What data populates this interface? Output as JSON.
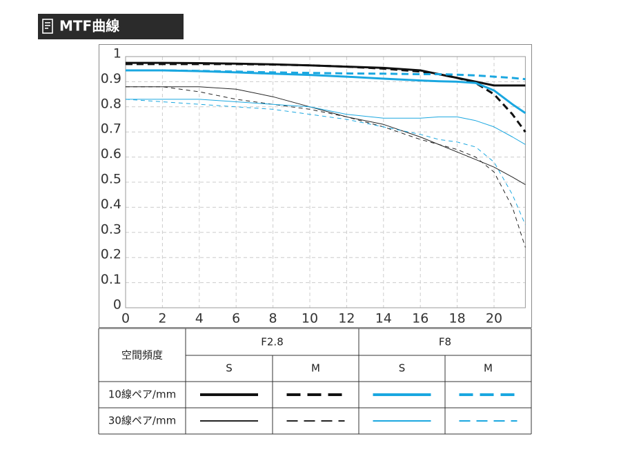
{
  "header": {
    "title": "MTF曲線"
  },
  "chart_data": {
    "type": "line",
    "x": [
      0,
      2,
      4,
      6,
      8,
      10,
      12,
      14,
      16,
      17,
      18,
      19,
      20,
      21,
      21.7
    ],
    "xlim": [
      0,
      21.7
    ],
    "xticks": [
      0,
      2,
      4,
      6,
      8,
      10,
      12,
      14,
      16,
      18,
      20
    ],
    "ylim": [
      0,
      1
    ],
    "yticks": [
      0,
      0.1,
      0.2,
      0.3,
      0.4,
      0.5,
      0.6,
      0.7,
      0.8,
      0.9,
      1
    ],
    "grid": true,
    "series": [
      {
        "color": "#111111",
        "width": 3,
        "dashed": false,
        "values": [
          0.975,
          0.975,
          0.974,
          0.972,
          0.969,
          0.965,
          0.96,
          0.955,
          0.945,
          0.93,
          0.915,
          0.9,
          0.885,
          0.885,
          0.885
        ]
      },
      {
        "color": "#111111",
        "width": 3,
        "dashed": true,
        "values": [
          0.97,
          0.97,
          0.97,
          0.97,
          0.968,
          0.965,
          0.96,
          0.952,
          0.94,
          0.93,
          0.915,
          0.895,
          0.85,
          0.77,
          0.7
        ]
      },
      {
        "color": "#1aa7e0",
        "width": 3,
        "dashed": false,
        "values": [
          0.945,
          0.945,
          0.942,
          0.937,
          0.932,
          0.927,
          0.92,
          0.912,
          0.905,
          0.902,
          0.9,
          0.895,
          0.865,
          0.81,
          0.775
        ]
      },
      {
        "color": "#1aa7e0",
        "width": 3,
        "dashed": true,
        "values": [
          0.945,
          0.945,
          0.943,
          0.94,
          0.937,
          0.935,
          0.933,
          0.932,
          0.93,
          0.93,
          0.928,
          0.925,
          0.92,
          0.915,
          0.91
        ]
      },
      {
        "color": "#222222",
        "width": 1,
        "dashed": false,
        "values": [
          0.88,
          0.88,
          0.88,
          0.87,
          0.84,
          0.8,
          0.76,
          0.73,
          0.68,
          0.65,
          0.62,
          0.59,
          0.56,
          0.52,
          0.49
        ]
      },
      {
        "color": "#222222",
        "width": 1,
        "dashed": true,
        "values": [
          0.88,
          0.88,
          0.86,
          0.83,
          0.81,
          0.79,
          0.76,
          0.72,
          0.67,
          0.65,
          0.63,
          0.6,
          0.54,
          0.4,
          0.24
        ]
      },
      {
        "color": "#1aa7e0",
        "width": 1,
        "dashed": false,
        "values": [
          0.83,
          0.83,
          0.83,
          0.82,
          0.81,
          0.8,
          0.77,
          0.755,
          0.755,
          0.76,
          0.76,
          0.745,
          0.72,
          0.68,
          0.65
        ]
      },
      {
        "color": "#1aa7e0",
        "width": 1,
        "dashed": true,
        "values": [
          0.83,
          0.82,
          0.81,
          0.8,
          0.79,
          0.77,
          0.75,
          0.72,
          0.69,
          0.67,
          0.66,
          0.64,
          0.58,
          0.45,
          0.33
        ]
      }
    ],
    "legend": {
      "header": "空間頻度",
      "apertures": [
        "F2.8",
        "F8"
      ],
      "orientations": [
        "S",
        "M"
      ],
      "frequencies": [
        "10線ペア/mm",
        "30線ペア/mm"
      ]
    }
  }
}
